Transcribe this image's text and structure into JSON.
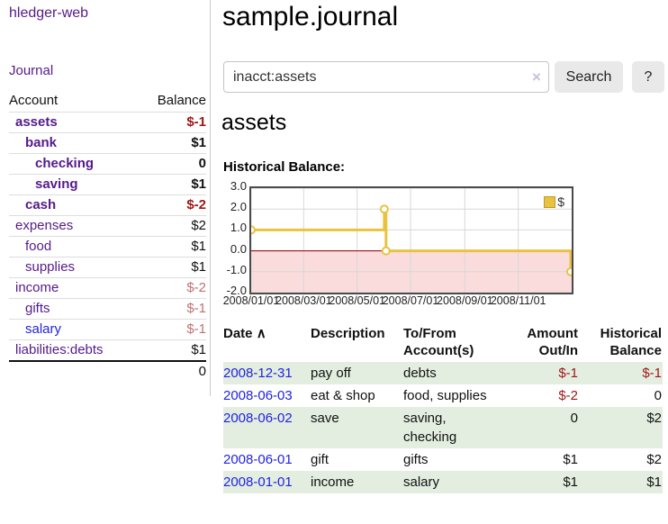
{
  "app": {
    "title": "hledger-web"
  },
  "sidebar": {
    "journal_label": "Journal",
    "accounts": {
      "header_account": "Account",
      "header_balance": "Balance",
      "rows": [
        {
          "name": "assets",
          "balance": "$-1",
          "level": 1,
          "emph": true,
          "name_color": "purple",
          "balance_color": "negdark"
        },
        {
          "name": "bank",
          "balance": "$1",
          "level": 2,
          "emph": true,
          "name_color": "purple",
          "balance_color": "black"
        },
        {
          "name": "checking",
          "balance": "0",
          "level": 3,
          "emph": true,
          "name_color": "purple",
          "balance_color": "black"
        },
        {
          "name": "saving",
          "balance": "$1",
          "level": 3,
          "emph": true,
          "name_color": "purple",
          "balance_color": "black"
        },
        {
          "name": "cash",
          "balance": "$-2",
          "level": 2,
          "emph": true,
          "name_color": "purple",
          "balance_color": "negdark"
        },
        {
          "name": "expenses",
          "balance": "$2",
          "level": 1,
          "emph": false,
          "name_color": "purple",
          "balance_color": "black"
        },
        {
          "name": "food",
          "balance": "$1",
          "level": 2,
          "emph": false,
          "name_color": "purple",
          "balance_color": "black"
        },
        {
          "name": "supplies",
          "balance": "$1",
          "level": 2,
          "emph": false,
          "name_color": "purple",
          "balance_color": "black"
        },
        {
          "name": "income",
          "balance": "$-2",
          "level": 1,
          "emph": false,
          "name_color": "purple",
          "balance_color": "negfade"
        },
        {
          "name": "gifts",
          "balance": "$-1",
          "level": 2,
          "emph": false,
          "name_color": "purple",
          "balance_color": "negfade"
        },
        {
          "name": "salary",
          "balance": "$-1",
          "level": 2,
          "emph": false,
          "name_color": "blue",
          "balance_color": "negfade"
        },
        {
          "name": "liabilities:debts",
          "balance": "$1",
          "level": 1,
          "emph": false,
          "name_color": "purple",
          "balance_color": "black"
        }
      ],
      "total": "0"
    }
  },
  "main": {
    "title": "sample.journal",
    "search": {
      "value": "inacct:assets",
      "clear_icon": "×",
      "button_label": "Search",
      "help_label": "?"
    },
    "account_heading": "assets",
    "section_label": "Historical Balance:"
  },
  "chart_data": {
    "type": "line",
    "step": true,
    "title": "Historical Balance",
    "xlabel": "",
    "ylabel": "",
    "x_range": [
      "2008-01-01",
      "2009-01-01"
    ],
    "ylim": [
      -2.0,
      3.0
    ],
    "y_ticks": [
      {
        "value": 3.0,
        "label": "3.0"
      },
      {
        "value": 2.0,
        "label": "2.0"
      },
      {
        "value": 1.0,
        "label": "1.0"
      },
      {
        "value": 0.0,
        "label": "0.0"
      },
      {
        "value": -1.0,
        "label": "-1.0"
      },
      {
        "value": -2.0,
        "label": "-2.0"
      }
    ],
    "x_ticks": [
      {
        "date": "2008-01-01",
        "label": "2008/01/01"
      },
      {
        "date": "2008-03-01",
        "label": "2008/03/01"
      },
      {
        "date": "2008-05-01",
        "label": "2008/05/01"
      },
      {
        "date": "2008-07-01",
        "label": "2008/07/01"
      },
      {
        "date": "2008-09-01",
        "label": "2008/09/01"
      },
      {
        "date": "2008-11-01",
        "label": "2008/11/01"
      }
    ],
    "series": [
      {
        "name": "$",
        "points": [
          [
            "2008-01-01",
            1
          ],
          [
            "2008-06-01",
            2
          ],
          [
            "2008-06-03",
            0
          ],
          [
            "2008-12-31",
            -1
          ]
        ]
      }
    ],
    "legend_position": "top-right",
    "grid": true,
    "negative_region_highlighted": true
  },
  "register": {
    "headers": {
      "date": "Date",
      "sort_indicator": "∧",
      "description": "Description",
      "accounts": "To/From Account(s)",
      "amount": "Amount Out/In",
      "balance": "Historical Balance"
    },
    "rows": [
      {
        "date": "2008-12-31",
        "description": "pay off",
        "accounts": "debts",
        "amount": "$-1",
        "balance": "$-1",
        "amount_color": "negdark",
        "balance_color": "negdark",
        "striped": true
      },
      {
        "date": "2008-06-03",
        "description": "eat & shop",
        "accounts": "food, supplies",
        "amount": "$-2",
        "balance": "0",
        "amount_color": "negdark",
        "balance_color": "black",
        "striped": false
      },
      {
        "date": "2008-06-02",
        "description": "save",
        "accounts": "saving, checking",
        "amount": "0",
        "balance": "$2",
        "amount_color": "black",
        "balance_color": "black",
        "striped": true
      },
      {
        "date": "2008-06-01",
        "description": "gift",
        "accounts": "gifts",
        "amount": "$1",
        "balance": "$2",
        "amount_color": "black",
        "balance_color": "black",
        "striped": false
      },
      {
        "date": "2008-01-01",
        "description": "income",
        "accounts": "salary",
        "amount": "$1",
        "balance": "$1",
        "amount_color": "black",
        "balance_color": "black",
        "striped": true
      }
    ]
  },
  "colors": {
    "link_purple": "#551a8b",
    "link_blue": "#2323dd",
    "negative_dark": "#9e1616",
    "negative_faded": "#bf7272",
    "row_stripe_green": "#e3eee0",
    "chart_line_gold": "#e9c340",
    "chart_negative_fill": "#fadcdc",
    "chart_zero_line": "#8b0000",
    "chart_grid": "#d8d8d8",
    "chart_border": "#4a4a4a",
    "button_bg": "#e9e9e9"
  }
}
